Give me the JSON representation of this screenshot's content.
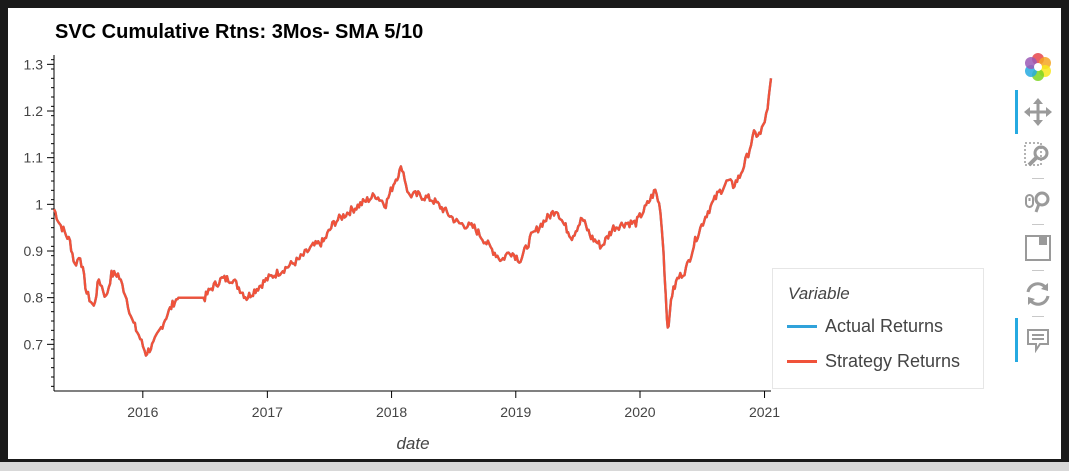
{
  "chart_data": {
    "type": "line",
    "title": "SVC Cumulative Rtns: 3Mos- SMA 5/10",
    "xlabel": "date",
    "ylabel": "",
    "x_ticks": [
      "2016",
      "2017",
      "2018",
      "2019",
      "2020",
      "2021"
    ],
    "y_ticks": [
      "0.7",
      "0.8",
      "0.9",
      "1",
      "1.1",
      "1.2",
      "1.3"
    ],
    "xlim": [
      "2015-04-15",
      "2021-01-20"
    ],
    "ylim": [
      0.6,
      1.32
    ],
    "grid": false,
    "legend": {
      "title": "Variable",
      "placement": "right"
    },
    "series": [
      {
        "name": "Actual Returns",
        "color": "#30a2da",
        "points": [
          [
            "2015-04-15",
            0.99
          ],
          [
            "2015-05-01",
            0.96
          ],
          [
            "2015-06-01",
            0.92
          ],
          [
            "2015-06-15",
            0.87
          ],
          [
            "2015-07-01",
            0.89
          ],
          [
            "2015-07-20",
            0.81
          ],
          [
            "2015-08-10",
            0.78
          ],
          [
            "2015-08-25",
            0.84
          ],
          [
            "2015-09-15",
            0.8
          ],
          [
            "2015-10-01",
            0.85
          ],
          [
            "2015-10-20",
            0.85
          ],
          [
            "2015-11-10",
            0.81
          ],
          [
            "2015-12-01",
            0.75
          ],
          [
            "2015-12-20",
            0.72
          ],
          [
            "2016-01-10",
            0.68
          ],
          [
            "2016-02-01",
            0.7
          ],
          [
            "2016-02-20",
            0.73
          ],
          [
            "2016-03-10",
            0.76
          ],
          [
            "2016-04-01",
            0.79
          ],
          [
            "2016-04-15",
            0.8
          ],
          [
            "2016-07-01",
            0.8
          ],
          [
            "2016-07-20",
            0.82
          ],
          [
            "2016-08-20",
            0.84
          ],
          [
            "2016-09-20",
            0.84
          ],
          [
            "2016-11-01",
            0.8
          ],
          [
            "2016-12-01",
            0.82
          ],
          [
            "2017-01-01",
            0.84
          ],
          [
            "2017-02-15",
            0.86
          ],
          [
            "2017-04-01",
            0.88
          ],
          [
            "2017-05-15",
            0.91
          ],
          [
            "2017-06-15",
            0.92
          ],
          [
            "2017-07-15",
            0.96
          ],
          [
            "2017-08-20",
            0.98
          ],
          [
            "2017-10-01",
            1.0
          ],
          [
            "2017-11-15",
            1.02
          ],
          [
            "2017-12-15",
            1.0
          ],
          [
            "2018-01-10",
            1.05
          ],
          [
            "2018-02-01",
            1.08
          ],
          [
            "2018-02-20",
            1.02
          ],
          [
            "2018-03-20",
            1.02
          ],
          [
            "2018-05-01",
            1.01
          ],
          [
            "2018-06-01",
            0.99
          ],
          [
            "2018-07-15",
            0.96
          ],
          [
            "2018-09-01",
            0.95
          ],
          [
            "2018-10-15",
            0.91
          ],
          [
            "2018-11-20",
            0.88
          ],
          [
            "2018-12-15",
            0.9
          ],
          [
            "2019-01-15",
            0.88
          ],
          [
            "2019-02-15",
            0.93
          ],
          [
            "2019-03-20",
            0.96
          ],
          [
            "2019-05-01",
            0.99
          ],
          [
            "2019-05-20",
            0.96
          ],
          [
            "2019-06-15",
            0.93
          ],
          [
            "2019-07-15",
            0.97
          ],
          [
            "2019-08-10",
            0.93
          ],
          [
            "2019-09-10",
            0.91
          ],
          [
            "2019-10-15",
            0.95
          ],
          [
            "2019-11-20",
            0.96
          ],
          [
            "2019-12-20",
            0.96
          ],
          [
            "2020-01-15",
            0.99
          ],
          [
            "2020-02-15",
            1.03
          ],
          [
            "2020-03-01",
            0.99
          ],
          [
            "2020-03-10",
            0.9
          ],
          [
            "2020-03-20",
            0.76
          ],
          [
            "2020-03-25",
            0.73
          ],
          [
            "2020-04-01",
            0.8
          ],
          [
            "2020-04-20",
            0.84
          ],
          [
            "2020-05-15",
            0.86
          ],
          [
            "2020-06-15",
            0.93
          ],
          [
            "2020-07-15",
            0.98
          ],
          [
            "2020-08-15",
            1.02
          ],
          [
            "2020-09-15",
            1.05
          ],
          [
            "2020-10-01",
            1.04
          ],
          [
            "2020-10-20",
            1.06
          ],
          [
            "2020-11-10",
            1.1
          ],
          [
            "2020-12-01",
            1.15
          ],
          [
            "2020-12-20",
            1.15
          ],
          [
            "2021-01-10",
            1.2
          ],
          [
            "2021-01-20",
            1.27
          ]
        ]
      },
      {
        "name": "Strategy Returns",
        "color": "#f0523a",
        "points": [
          [
            "2015-04-15",
            0.99
          ],
          [
            "2015-05-01",
            0.96
          ],
          [
            "2015-06-01",
            0.92
          ],
          [
            "2015-06-15",
            0.87
          ],
          [
            "2015-07-01",
            0.89
          ],
          [
            "2015-07-20",
            0.81
          ],
          [
            "2015-08-10",
            0.78
          ],
          [
            "2015-08-25",
            0.84
          ],
          [
            "2015-09-15",
            0.8
          ],
          [
            "2015-10-01",
            0.85
          ],
          [
            "2015-10-20",
            0.85
          ],
          [
            "2015-11-10",
            0.81
          ],
          [
            "2015-12-01",
            0.75
          ],
          [
            "2015-12-20",
            0.72
          ],
          [
            "2016-01-10",
            0.68
          ],
          [
            "2016-02-01",
            0.7
          ],
          [
            "2016-02-20",
            0.73
          ],
          [
            "2016-03-10",
            0.76
          ],
          [
            "2016-04-01",
            0.79
          ],
          [
            "2016-04-15",
            0.8
          ],
          [
            "2016-07-01",
            0.8
          ],
          [
            "2016-07-20",
            0.82
          ],
          [
            "2016-08-20",
            0.84
          ],
          [
            "2016-09-20",
            0.84
          ],
          [
            "2016-11-01",
            0.8
          ],
          [
            "2016-12-01",
            0.82
          ],
          [
            "2017-01-01",
            0.84
          ],
          [
            "2017-02-15",
            0.86
          ],
          [
            "2017-04-01",
            0.88
          ],
          [
            "2017-05-15",
            0.91
          ],
          [
            "2017-06-15",
            0.92
          ],
          [
            "2017-07-15",
            0.96
          ],
          [
            "2017-08-20",
            0.98
          ],
          [
            "2017-10-01",
            1.0
          ],
          [
            "2017-11-15",
            1.02
          ],
          [
            "2017-12-15",
            1.0
          ],
          [
            "2018-01-10",
            1.05
          ],
          [
            "2018-02-01",
            1.08
          ],
          [
            "2018-02-20",
            1.02
          ],
          [
            "2018-03-20",
            1.02
          ],
          [
            "2018-05-01",
            1.01
          ],
          [
            "2018-06-01",
            0.99
          ],
          [
            "2018-07-15",
            0.96
          ],
          [
            "2018-09-01",
            0.95
          ],
          [
            "2018-10-15",
            0.91
          ],
          [
            "2018-11-20",
            0.88
          ],
          [
            "2018-12-15",
            0.9
          ],
          [
            "2019-01-15",
            0.88
          ],
          [
            "2019-02-15",
            0.93
          ],
          [
            "2019-03-20",
            0.96
          ],
          [
            "2019-05-01",
            0.99
          ],
          [
            "2019-05-20",
            0.96
          ],
          [
            "2019-06-15",
            0.93
          ],
          [
            "2019-07-15",
            0.97
          ],
          [
            "2019-08-10",
            0.93
          ],
          [
            "2019-09-10",
            0.91
          ],
          [
            "2019-10-15",
            0.95
          ],
          [
            "2019-11-20",
            0.96
          ],
          [
            "2019-12-20",
            0.96
          ],
          [
            "2020-01-15",
            0.99
          ],
          [
            "2020-02-15",
            1.03
          ],
          [
            "2020-03-01",
            0.99
          ],
          [
            "2020-03-10",
            0.9
          ],
          [
            "2020-03-20",
            0.76
          ],
          [
            "2020-03-25",
            0.73
          ],
          [
            "2020-04-01",
            0.8
          ],
          [
            "2020-04-20",
            0.84
          ],
          [
            "2020-05-15",
            0.86
          ],
          [
            "2020-06-15",
            0.93
          ],
          [
            "2020-07-15",
            0.98
          ],
          [
            "2020-08-15",
            1.02
          ],
          [
            "2020-09-15",
            1.05
          ],
          [
            "2020-10-01",
            1.04
          ],
          [
            "2020-10-20",
            1.06
          ],
          [
            "2020-11-10",
            1.1
          ],
          [
            "2020-12-01",
            1.15
          ],
          [
            "2020-12-20",
            1.15
          ],
          [
            "2021-01-10",
            1.2
          ],
          [
            "2021-01-20",
            1.27
          ]
        ]
      }
    ]
  },
  "toolbar": {
    "accent_color": "#26aae1",
    "tools": [
      {
        "icon": "bokeh-logo-icon",
        "active": false
      },
      {
        "icon": "pan-icon",
        "active": true
      },
      {
        "icon": "box-zoom-icon",
        "active": false
      },
      {
        "icon": "wheel-zoom-icon",
        "active": false
      },
      {
        "icon": "save-icon",
        "active": false
      },
      {
        "icon": "reset-icon",
        "active": false
      },
      {
        "icon": "hover-icon",
        "active": true
      }
    ]
  }
}
